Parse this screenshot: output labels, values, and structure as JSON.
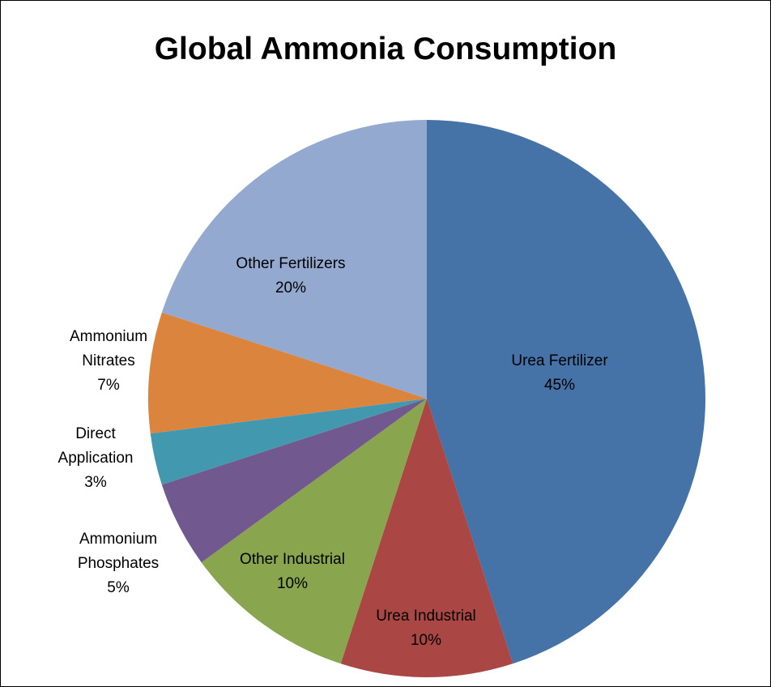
{
  "chart_data": {
    "type": "pie",
    "title": "Global Ammonia Consumption",
    "categories": [
      "Urea Fertilizer",
      "Urea Industrial",
      "Other Industrial",
      "Ammonium Phosphates",
      "Direct Application",
      "Ammonium Nitrates",
      "Other Fertilizers"
    ],
    "values": [
      45,
      10,
      10,
      5,
      3,
      7,
      20
    ],
    "value_labels": [
      "45%",
      "10%",
      "10%",
      "5%",
      "3%",
      "7%",
      "20%"
    ],
    "colors": [
      "#4572a7",
      "#aa4643",
      "#89a54e",
      "#71588f",
      "#4198af",
      "#db843d",
      "#93a9cf"
    ]
  }
}
